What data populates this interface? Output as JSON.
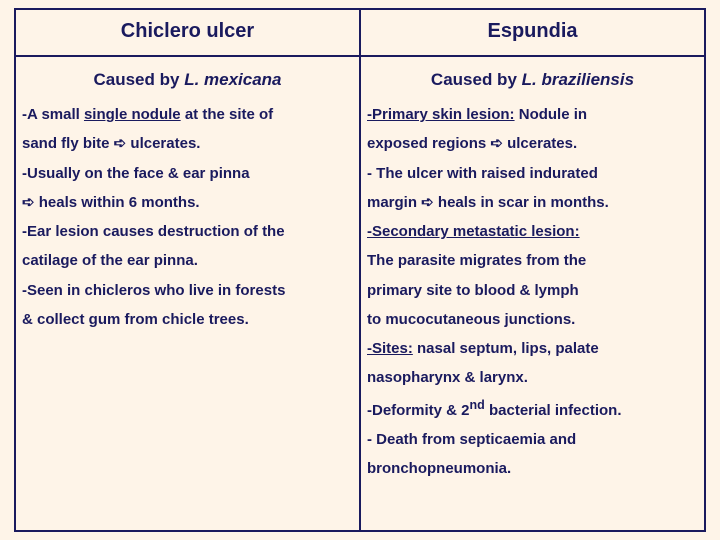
{
  "colors": {
    "background": "#fef4e8",
    "text": "#1a1a5e",
    "border": "#1a1a5e"
  },
  "typography": {
    "family": "Arial",
    "header_fontsize": 20,
    "subtitle_fontsize": 17,
    "body_fontsize": 15,
    "line_height": 1.95
  },
  "table": {
    "type": "table",
    "columns": 2,
    "left": {
      "header": "Chiclero ulcer",
      "subtitle_prefix": "Caused by ",
      "subtitle_italic": "L. mexicana",
      "line1a": "-A small ",
      "line1b_underline": "single nodule",
      "line1c": " at the site of",
      "line2": "sand fly bite ➪ ulcerates.",
      "line3": "-Usually on the face & ear pinna",
      "line4": "➪ heals within 6 months.",
      "line5": "-Ear lesion causes destruction of the",
      "line6": "catilage of the ear pinna.",
      "line7": "-Seen in chicleros who live in forests",
      "line8": "& collect gum from chicle trees."
    },
    "right": {
      "header": "Espundia",
      "subtitle_prefix": "Caused by ",
      "subtitle_italic": "L. braziliensis",
      "line1a_underline": "-Primary skin lesion:",
      "line1b": " Nodule in",
      "line2": " exposed regions ➪ ulcerates.",
      "line3": "- The ulcer with raised indurated",
      "line4": " margin ➪ heals in scar in months.",
      "line5a_underline": "-Secondary metastatic lesion:",
      "line6": "The parasite migrates from the",
      "line7": " primary site to blood & lymph",
      "line8": " to mucocutaneous junctions.",
      "line9a_underline": "-Sites:",
      "line9b": " nasal septum, lips, palate",
      "line10": "nasopharynx & larynx.",
      "line11a": "-Deformity & 2",
      "line11b_sup": "nd",
      "line11c": " bacterial infection.",
      "line12": "- Death from septicaemia and",
      "line13": " bronchopneumonia."
    }
  }
}
